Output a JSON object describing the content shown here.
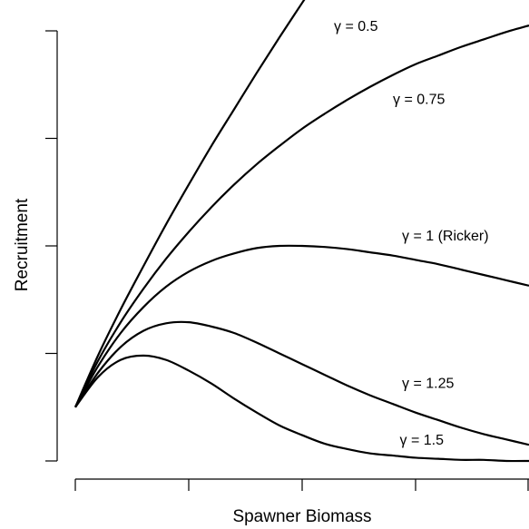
{
  "chart_data": {
    "type": "line",
    "title": "",
    "xlabel": "Spawner Biomass",
    "ylabel": "Recruitment",
    "xlim": [
      0,
      10
    ],
    "ylim": [
      -0.35,
      4.1
    ],
    "grid": false,
    "x_ticks": [
      0,
      2.5,
      5,
      7.5,
      10
    ],
    "y_ticks": [
      0,
      1,
      2,
      3,
      4
    ],
    "tick_labels_shown": false,
    "series": [
      {
        "name": "γ = 0.5",
        "x": [
          0,
          0.5,
          1,
          1.5,
          2,
          2.5,
          3,
          3.5,
          4,
          4.5,
          5,
          5.5,
          5.82
        ],
        "values": [
          0.5,
          0.98,
          1.41,
          1.81,
          2.2,
          2.57,
          2.93,
          3.27,
          3.61,
          3.94,
          4.26,
          4.58,
          4.78
        ]
      },
      {
        "name": "γ = 0.75",
        "x": [
          0,
          0.5,
          1,
          1.5,
          2,
          2.5,
          3,
          3.5,
          4,
          4.5,
          5,
          5.5,
          6,
          6.5,
          7,
          7.5,
          8,
          8.5,
          9,
          9.5,
          10
        ],
        "values": [
          0.5,
          0.93,
          1.29,
          1.6,
          1.88,
          2.13,
          2.36,
          2.57,
          2.76,
          2.93,
          3.09,
          3.23,
          3.36,
          3.48,
          3.59,
          3.69,
          3.77,
          3.85,
          3.92,
          3.99,
          4.05
        ]
      },
      {
        "name": "γ = 1 (Ricker)",
        "x": [
          0,
          0.5,
          1,
          1.5,
          2,
          2.5,
          3,
          3.5,
          4,
          4.5,
          5,
          5.5,
          6,
          6.5,
          7,
          7.5,
          8,
          8.5,
          9,
          9.5,
          10
        ],
        "values": [
          0.5,
          0.88,
          1.19,
          1.43,
          1.62,
          1.76,
          1.86,
          1.93,
          1.98,
          2.0,
          2.0,
          1.99,
          1.97,
          1.94,
          1.91,
          1.87,
          1.83,
          1.78,
          1.73,
          1.68,
          1.63
        ]
      },
      {
        "name": "γ = 1.25",
        "x": [
          0,
          0.5,
          1,
          1.5,
          2,
          2.5,
          3,
          3.5,
          4,
          4.5,
          5,
          5.5,
          6,
          6.5,
          7,
          7.5,
          8,
          8.5,
          9,
          9.5,
          10
        ],
        "values": [
          0.5,
          0.82,
          1.06,
          1.21,
          1.28,
          1.29,
          1.25,
          1.19,
          1.1,
          1.0,
          0.9,
          0.8,
          0.7,
          0.61,
          0.53,
          0.45,
          0.38,
          0.31,
          0.25,
          0.2,
          0.15
        ]
      },
      {
        "name": "γ = 1.5",
        "x": [
          0,
          0.5,
          1,
          1.5,
          2,
          2.5,
          3,
          3.5,
          4,
          4.5,
          5,
          5.5,
          6,
          6.5,
          7,
          7.5,
          8,
          8.5,
          9,
          9.5,
          10
        ],
        "values": [
          0.5,
          0.78,
          0.94,
          0.98,
          0.94,
          0.84,
          0.72,
          0.58,
          0.45,
          0.33,
          0.24,
          0.16,
          0.11,
          0.07,
          0.05,
          0.03,
          0.02,
          0.01,
          0.01,
          0.0,
          0.0
        ]
      }
    ],
    "annotations": [
      {
        "series": 0,
        "text": "γ = 0.5",
        "at_x": 5.7,
        "at_y": 4.0
      },
      {
        "series": 1,
        "text": "γ = 0.75",
        "at_x": 7.0,
        "at_y": 3.32
      },
      {
        "series": 2,
        "text": "γ = 1 (Ricker)",
        "at_x": 7.2,
        "at_y": 2.05
      },
      {
        "series": 3,
        "text": "γ = 1.25",
        "at_x": 7.2,
        "at_y": 0.68
      },
      {
        "series": 4,
        "text": "γ = 1.5",
        "at_x": 7.15,
        "at_y": 0.15
      }
    ]
  }
}
